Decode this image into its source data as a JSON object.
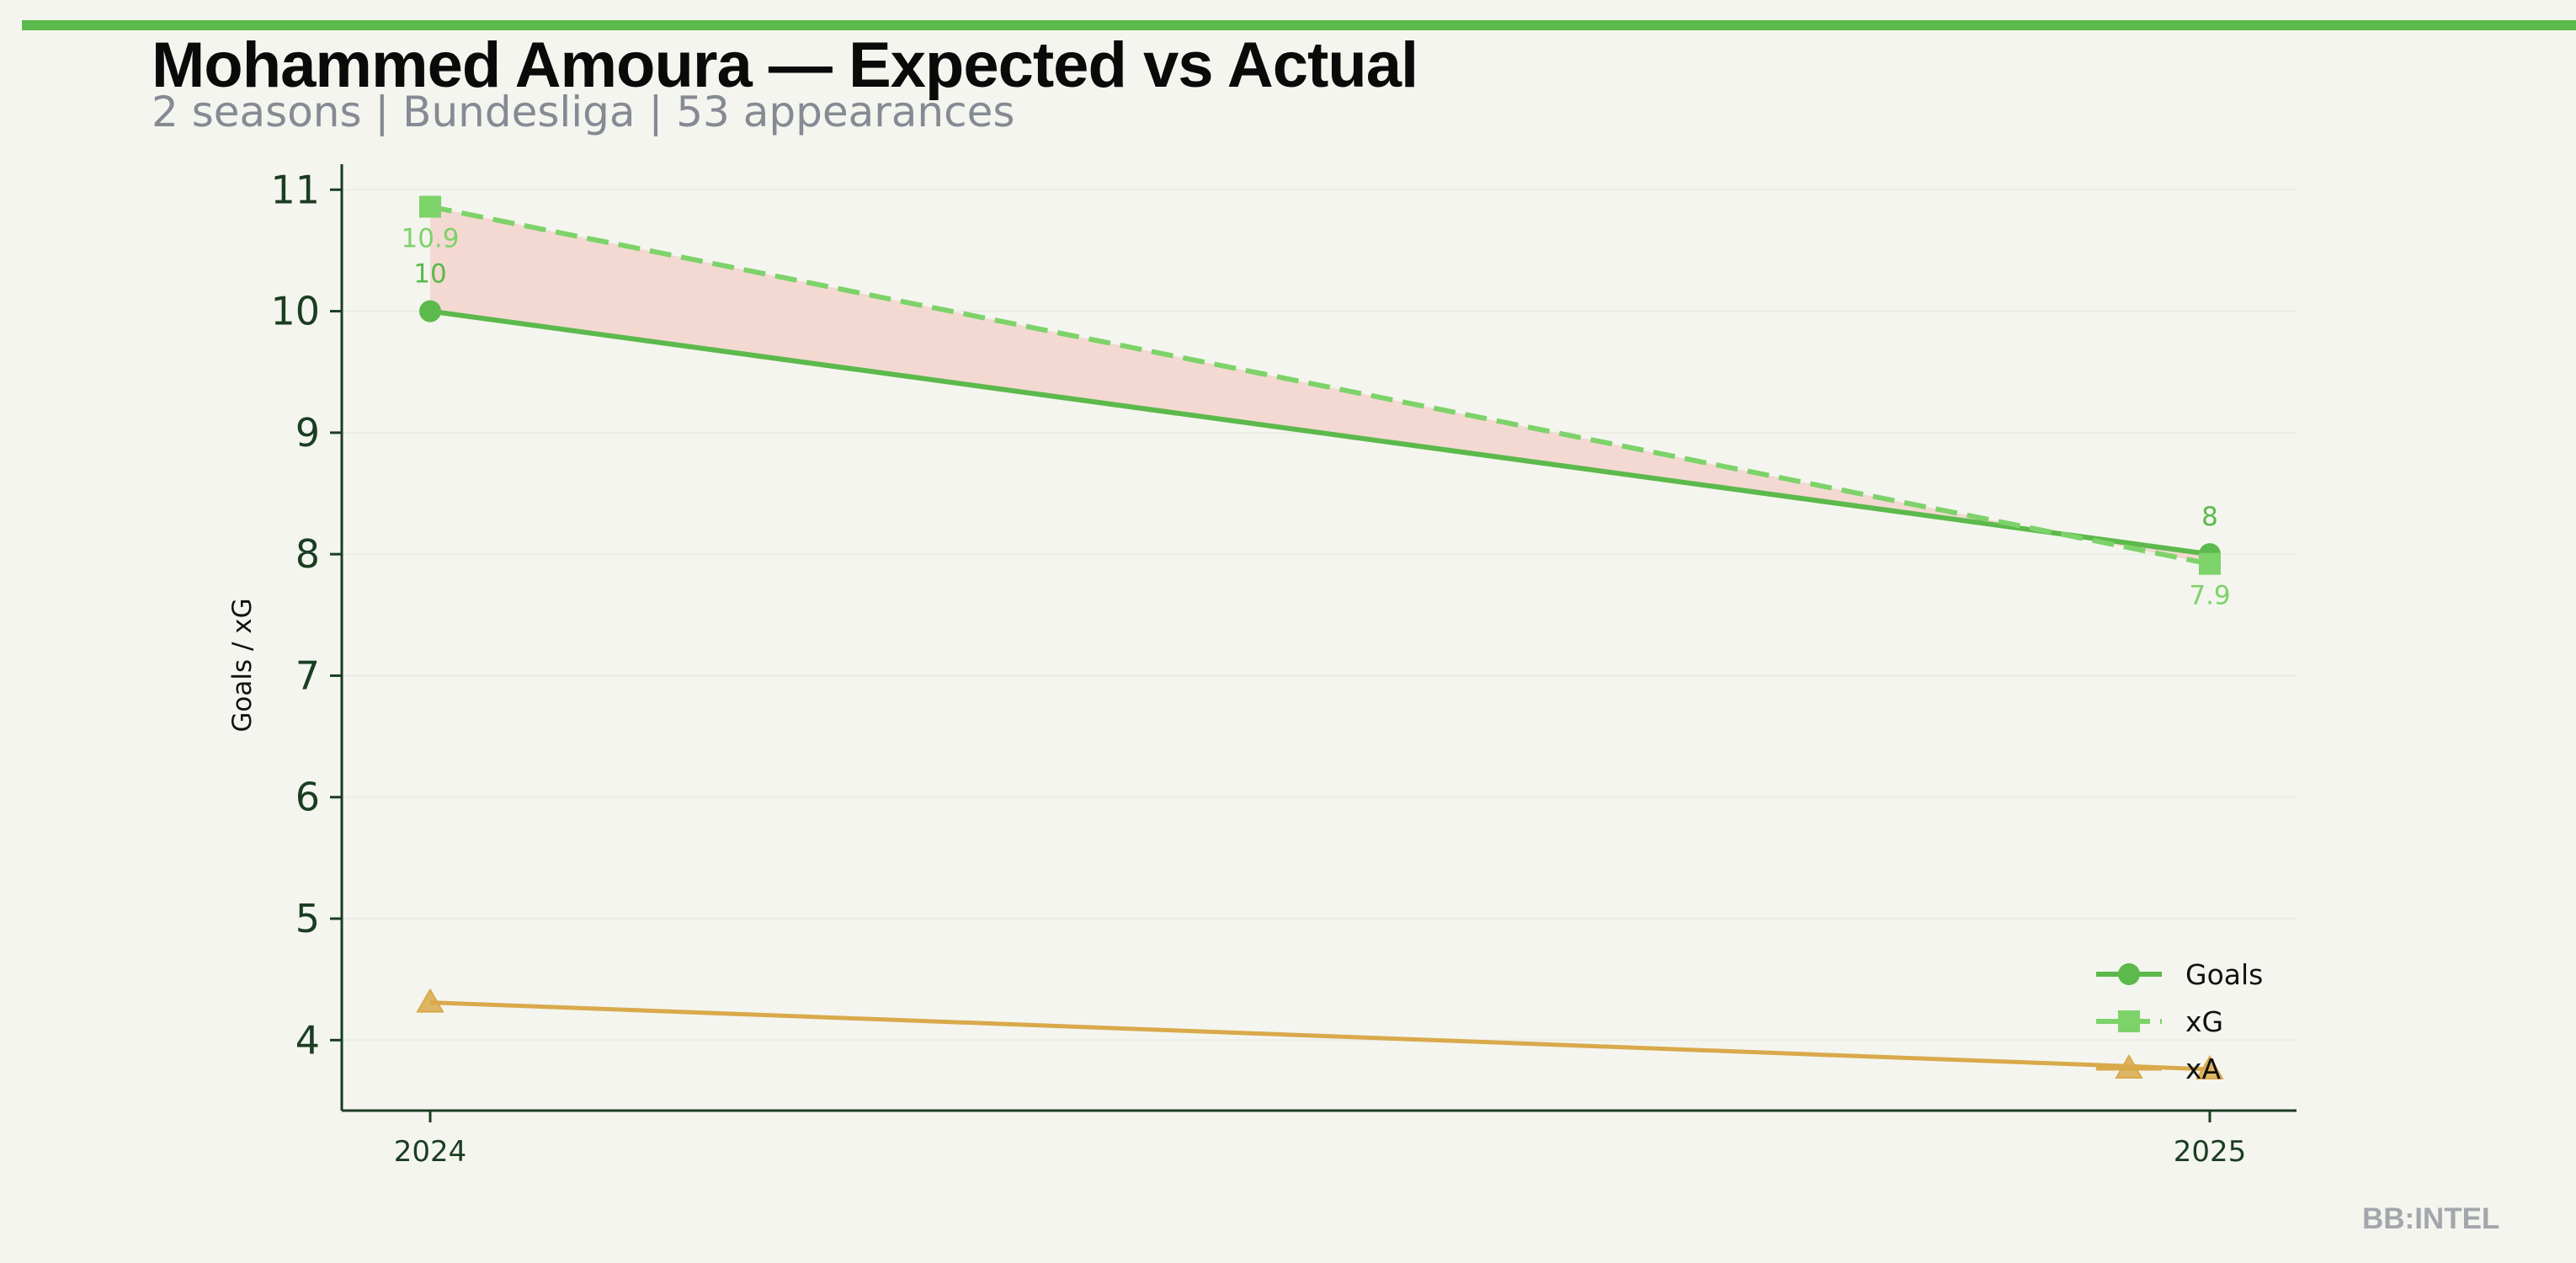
{
  "title": "Mohammed Amoura — Expected vs Actual",
  "subtitle": "2 seasons | Bundesliga | 53 appearances",
  "watermark": "BB:INTEL",
  "colors": {
    "accent": "#5cb94b",
    "goals": "#5cb94b",
    "xg": "#7dd369",
    "xa": "#d9a94a",
    "fill": "#f4cfc9",
    "background": "#f4f5ef"
  },
  "chart_data": {
    "type": "line",
    "x": [
      2024,
      2025
    ],
    "xticks": [
      "2024",
      "2025"
    ],
    "ylabel": "Goals / xG",
    "xlabel": "",
    "ylim": [
      3.42,
      11.21
    ],
    "yticks": [
      "4",
      "5",
      "6",
      "7",
      "8",
      "9",
      "10",
      "11"
    ],
    "grid": "horizontal",
    "legend_position": "bottom-right",
    "series": [
      {
        "name": "Goals",
        "values": [
          10,
          8
        ],
        "labels": [
          "10",
          "8"
        ],
        "marker": "circle",
        "style": "solid"
      },
      {
        "name": "xG",
        "values": [
          10.86,
          7.92
        ],
        "labels": [
          "10.9",
          "7.9"
        ],
        "marker": "square",
        "style": "dashed"
      },
      {
        "name": "xA",
        "values": [
          4.31,
          3.76
        ],
        "marker": "triangle",
        "style": "solid"
      }
    ],
    "shaded_region": "between Goals and xG"
  }
}
